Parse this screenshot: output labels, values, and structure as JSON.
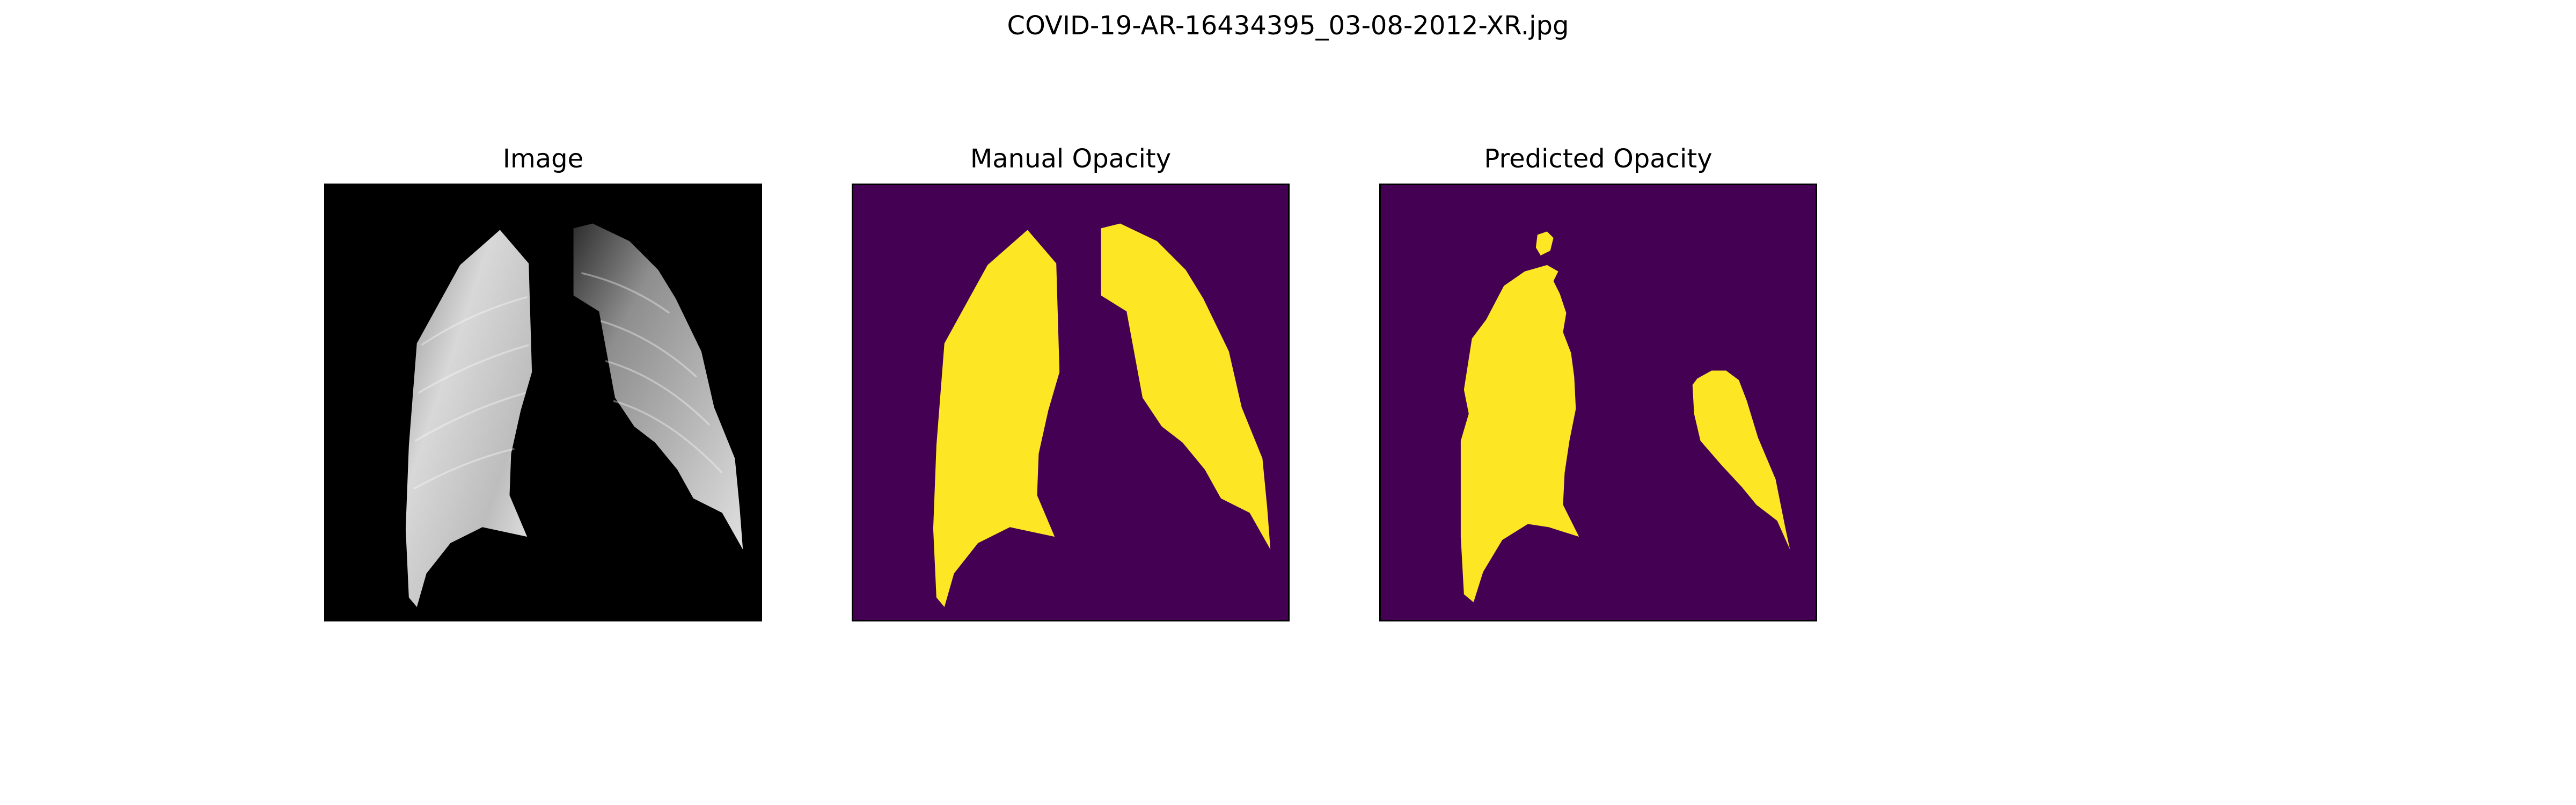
{
  "figure": {
    "suptitle": "COVID-19-AR-16434395_03-08-2012-XR.jpg"
  },
  "panels": [
    {
      "title": "Image",
      "kind": "xray",
      "colors": {
        "background": "#000000",
        "tissue": "#dcdcdc"
      }
    },
    {
      "title": "Manual Opacity",
      "kind": "mask",
      "colors": {
        "background": "#440154",
        "mask": "#fde725"
      }
    },
    {
      "title": "Predicted Opacity",
      "kind": "mask",
      "colors": {
        "background": "#440154",
        "mask": "#fde725"
      }
    }
  ]
}
